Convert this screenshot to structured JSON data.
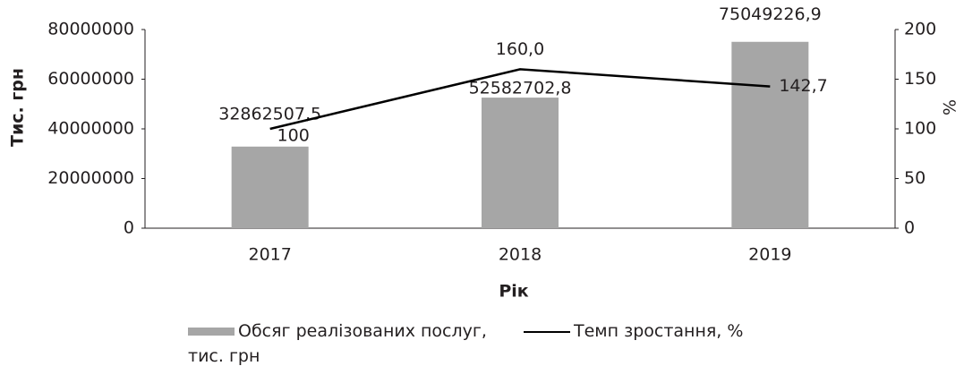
{
  "chart_data": {
    "type": "bar",
    "categories": [
      "2017",
      "2018",
      "2019"
    ],
    "series": [
      {
        "name": "Обсяг реалізованих послуг, тис. грн",
        "type": "bar",
        "color": "#a6a6a6",
        "values": [
          32862507.5,
          52582702.8,
          75049226.9
        ],
        "value_labels": [
          "32862507,5",
          "52582702,8",
          "75049226,9"
        ]
      },
      {
        "name": "Темп зростання, %",
        "type": "line",
        "axis": "y2",
        "color": "#000000",
        "values": [
          100,
          160.0,
          142.7
        ],
        "value_labels": [
          "100",
          "160,0",
          "142,7"
        ]
      }
    ],
    "xlabel": "Рік",
    "ylabel": "Тис. грн",
    "y2label": "%",
    "ylim": [
      0,
      80000000
    ],
    "yticks": [
      0,
      20000000,
      40000000,
      60000000,
      80000000
    ],
    "y2lim": [
      0,
      200
    ],
    "y2ticks": [
      0,
      50,
      100,
      150,
      200
    ],
    "grid": false,
    "legend": "bottom"
  }
}
